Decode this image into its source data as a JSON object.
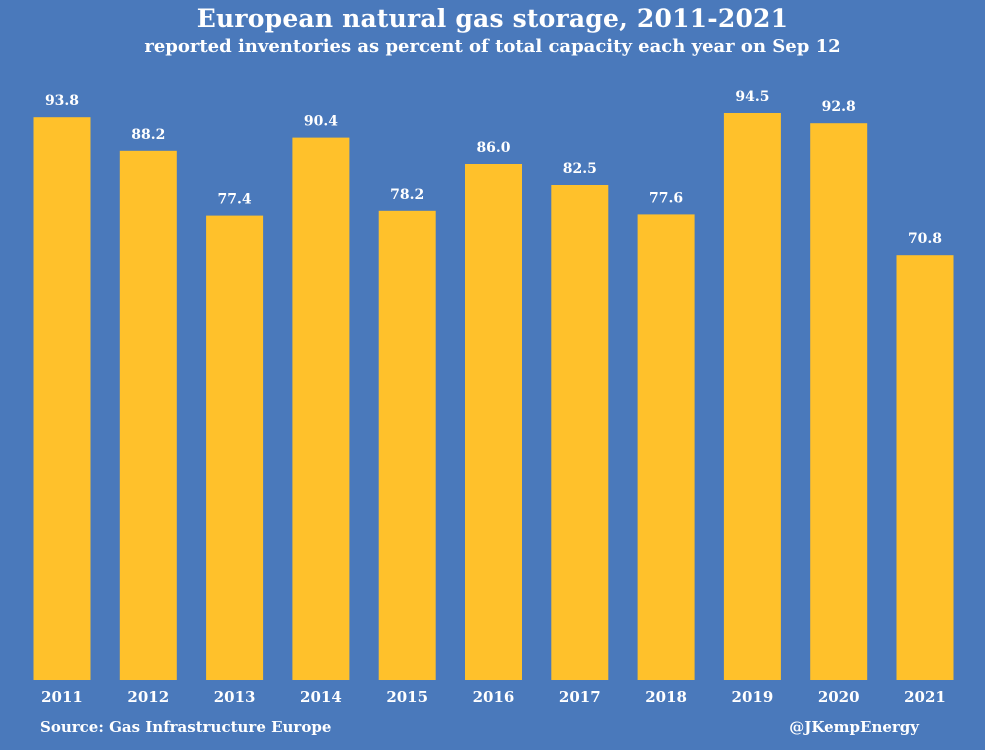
{
  "colors": {
    "background": "#4a79bb",
    "bar": "#ffc12b",
    "text": "#ffffff"
  },
  "chart_data": {
    "type": "bar",
    "title": "European natural gas storage, 2011-2021",
    "subtitle": "reported inventories as percent of total capacity each year on Sep 12",
    "categories": [
      "2011",
      "2012",
      "2013",
      "2014",
      "2015",
      "2016",
      "2017",
      "2018",
      "2019",
      "2020",
      "2021"
    ],
    "values": [
      93.8,
      88.2,
      77.4,
      90.4,
      78.2,
      86.0,
      82.5,
      77.6,
      94.5,
      92.8,
      70.8
    ],
    "value_labels": [
      "93.8",
      "88.2",
      "77.4",
      "90.4",
      "78.2",
      "86.0",
      "82.5",
      "77.6",
      "94.5",
      "92.8",
      "70.8"
    ],
    "xlabel": "",
    "ylabel": "",
    "ylim": [
      0,
      100
    ],
    "grid": false,
    "legend": "none",
    "source": "Source: Gas Infrastructure Europe",
    "credit": "@JKempEnergy"
  }
}
